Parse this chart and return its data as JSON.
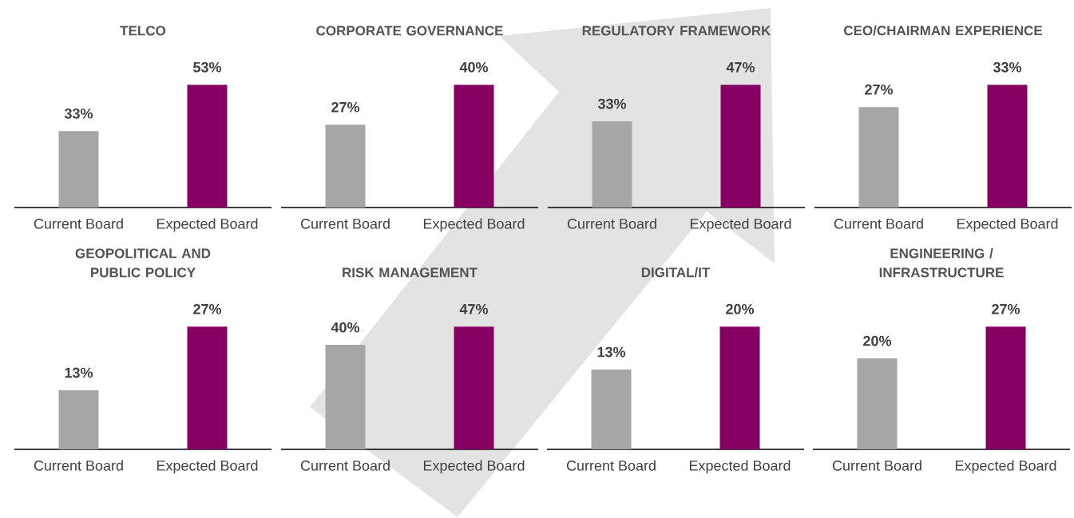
{
  "chart_data": [
    {
      "type": "bar",
      "title": "TELCO",
      "categories": [
        "Current Board",
        "Expected Board"
      ],
      "values": [
        33,
        53
      ],
      "value_labels": [
        "33%",
        "53%"
      ],
      "colors": [
        "#a6a6a6",
        "#860061"
      ],
      "tick_labels": "x"
    },
    {
      "type": "bar",
      "title": "CORPORATE GOVERNANCE",
      "categories": [
        "Current Board",
        "Expected Board"
      ],
      "values": [
        27,
        40
      ],
      "value_labels": [
        "27%",
        "40%"
      ],
      "colors": [
        "#a6a6a6",
        "#860061"
      ],
      "tick_labels": "x"
    },
    {
      "type": "bar",
      "title": "REGULATORY FRAMEWORK",
      "categories": [
        "Current Board",
        "Expected Board"
      ],
      "values": [
        33,
        47
      ],
      "value_labels": [
        "33%",
        "47%"
      ],
      "colors": [
        "#a6a6a6",
        "#860061"
      ],
      "tick_labels": "x"
    },
    {
      "type": "bar",
      "title": "CEO/CHAIRMAN EXPERIENCE",
      "categories": [
        "Current Board",
        "Expected Board"
      ],
      "values": [
        27,
        33
      ],
      "value_labels": [
        "27%",
        "33%"
      ],
      "colors": [
        "#a6a6a6",
        "#860061"
      ],
      "tick_labels": "x"
    },
    {
      "type": "bar",
      "title": "GEOPOLITICAL AND PUBLIC POLICY",
      "categories": [
        "Current Board",
        "Expected Board"
      ],
      "values": [
        13,
        27
      ],
      "value_labels": [
        "13%",
        "27%"
      ],
      "colors": [
        "#a6a6a6",
        "#860061"
      ],
      "tick_labels": "x"
    },
    {
      "type": "bar",
      "title": "RISK MANAGEMENT",
      "categories": [
        "Current Board",
        "Expected Board"
      ],
      "values": [
        40,
        47
      ],
      "value_labels": [
        "40%",
        "47%"
      ],
      "colors": [
        "#a6a6a6",
        "#860061"
      ],
      "tick_labels": "x"
    },
    {
      "type": "bar",
      "title": "DIGITAL/IT",
      "categories": [
        "Current Board",
        "Expected Board"
      ],
      "values": [
        13,
        20
      ],
      "value_labels": [
        "13%",
        "20%"
      ],
      "colors": [
        "#a6a6a6",
        "#860061"
      ],
      "tick_labels": "x"
    },
    {
      "type": "bar",
      "title": "ENGINEERING / INFRASTRUCTURE",
      "categories": [
        "Current Board",
        "Expected Board"
      ],
      "values": [
        20,
        27
      ],
      "value_labels": [
        "20%",
        "27%"
      ],
      "colors": [
        "#a6a6a6",
        "#860061"
      ],
      "tick_labels": "x"
    }
  ]
}
